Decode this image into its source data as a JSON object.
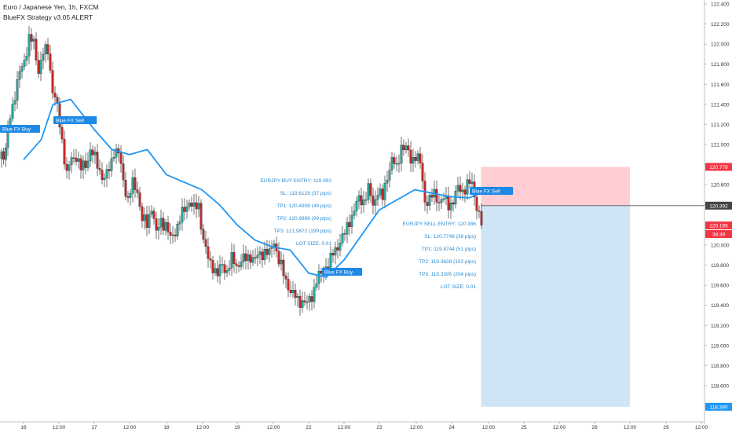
{
  "header": {
    "symbol_title": "Euro / Japanese Yen, 1h, FXCM",
    "study_title": "BlueFX Strategy v3.05 ALERT"
  },
  "colors": {
    "up": "#26a69a",
    "down": "#c62828",
    "ema": "#2196f3",
    "signal_label": "#1e88e5",
    "annotation_text": "#2d8bd2",
    "stop_zone": "#ffcdd2",
    "target_zone": "#cfe5f6",
    "price_tag_red": "#f23645",
    "price_tag_gray": "#454545",
    "price_tag_blue": "#2196f3"
  },
  "price_axis": {
    "labels": [
      "122.400",
      "122.200",
      "122.000",
      "121.800",
      "121.600",
      "121.400",
      "121.200",
      "121.000",
      "120.800",
      "120.600",
      "120.400",
      "120.200",
      "120.000",
      "119.800",
      "119.600",
      "119.400",
      "119.200",
      "119.000",
      "118.800",
      "118.600"
    ],
    "price_tags": [
      {
        "text": "120.778",
        "style": "red"
      },
      {
        "text": "120.392",
        "style": "gray"
      },
      {
        "text": "120.195",
        "style": "red"
      },
      {
        "text": "38:39",
        "style": "red"
      },
      {
        "text": "118.390",
        "style": "blue"
      }
    ]
  },
  "time_axis": {
    "labels": [
      "16",
      "12:00",
      "17",
      "12:00",
      "18",
      "12:00",
      "19",
      "12:00",
      "22",
      "12:00",
      "23",
      "12:00",
      "24",
      "12:00",
      "25",
      "12:00",
      "26",
      "12:00",
      "29",
      "12:00"
    ]
  },
  "signals": [
    "Blue FX Buy",
    "Blue FX Sell",
    "Blue FX Buy",
    "Blue FX Sell"
  ],
  "buy_annotation": [
    "EURJPY BUY ENTRY: 119.992",
    "SL: 119.6129 (37 pips)",
    "TP1: 120.4908 (49 pips)",
    "TP2: 120.9896 (99 pips)",
    "TP3: 121.9872 (199 pips)",
    "LOT SIZE: 0.01"
  ],
  "sell_annotation": [
    "EURJPY SELL ENTRY: 120.386",
    "SL: 120.7748 (38 pips)",
    "TP1: 119.8744 (51 pips)",
    "TP2: 119.3628 (102 pips)",
    "TP3: 118.3395 (204 pips)",
    "LOT SIZE: 0.01"
  ],
  "chart_data": {
    "type": "candlestick",
    "instrument": "Euro / Japanese Yen",
    "timeframe": "1h",
    "y_scale": "linear",
    "ylim": [
      118.35,
      122.42
    ],
    "ema_line": [
      [
        "16",
        120.85
      ],
      [
        "16 06:00",
        121.05
      ],
      [
        "16 10:00",
        121.4
      ],
      [
        "16 16:00",
        121.45
      ],
      [
        "17",
        121.15
      ],
      [
        "17 06:00",
        120.95
      ],
      [
        "17 12:00",
        120.9
      ],
      [
        "17 18:00",
        120.95
      ],
      [
        "18",
        120.7
      ],
      [
        "18 12:00",
        120.55
      ],
      [
        "18 18:00",
        120.4
      ],
      [
        "19",
        120.2
      ],
      [
        "19 06:00",
        120.05
      ],
      [
        "19 12:00",
        119.98
      ],
      [
        "19 18:00",
        119.95
      ],
      [
        "22",
        119.72
      ],
      [
        "22 06:00",
        119.68
      ],
      [
        "22 12:00",
        119.85
      ],
      [
        "22 18:00",
        120.1
      ],
      [
        "23",
        120.35
      ],
      [
        "23 12:00",
        120.55
      ],
      [
        "24",
        120.48
      ],
      [
        "24 06:00",
        120.47
      ],
      [
        "24 10:00",
        120.52
      ]
    ],
    "position_tool": {
      "entry": 120.392,
      "stop": 120.778,
      "target": 118.39,
      "start_time": "24 10:00",
      "end_time": "26 12:00"
    },
    "last_price": 120.195
  }
}
